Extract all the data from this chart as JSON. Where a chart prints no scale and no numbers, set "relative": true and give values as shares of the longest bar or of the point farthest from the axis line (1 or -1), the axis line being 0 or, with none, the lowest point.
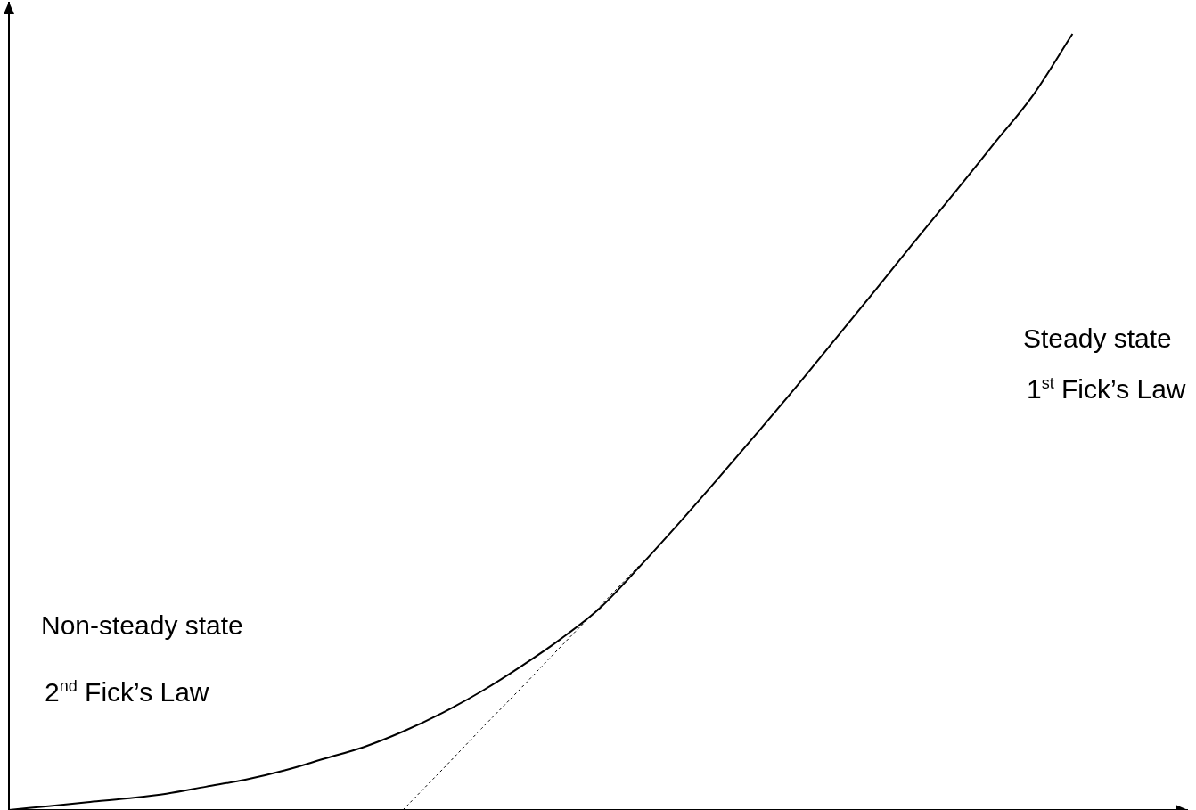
{
  "chart_data": {
    "type": "line",
    "relative": true,
    "grid": false,
    "legend": false,
    "marker": "none",
    "categories": [
      null,
      null,
      null,
      null,
      null,
      null,
      null,
      null,
      null,
      null,
      null,
      null,
      null,
      null,
      null,
      null,
      null,
      null,
      null,
      null,
      null,
      null,
      null,
      null,
      null,
      null,
      null,
      null,
      null,
      null,
      null
    ],
    "series": [
      {
        "color": "#000000",
        "line_style": "solid",
        "values": [
          0,
          0.005,
          0.01,
          0.015,
          0.021,
          0.03,
          0.039,
          0.051,
          0.066,
          0.081,
          0.101,
          0.125,
          0.153,
          0.185,
          0.22,
          0.26,
          0.313,
          0.369,
          0.427,
          0.486,
          0.546,
          0.608,
          0.67,
          0.733,
          0.795,
          0.858,
          0.921,
          1,
          null,
          null,
          null
        ]
      },
      {
        "color": "#000000",
        "line_style": "dotted",
        "values": [
          null,
          null,
          null,
          null,
          null,
          null,
          null,
          null,
          null,
          null,
          0,
          0.052,
          0.105,
          0.157,
          0.21,
          0.262,
          0.315,
          null,
          null,
          null,
          null,
          null,
          null,
          null,
          null,
          null,
          null,
          null,
          null,
          null,
          null
        ]
      }
    ],
    "annotations": [
      "Steady state",
      "1$^{st}$ Fick’s Law",
      "Non-steady state",
      "2$^{nd}$ Fick’s Law"
    ]
  }
}
